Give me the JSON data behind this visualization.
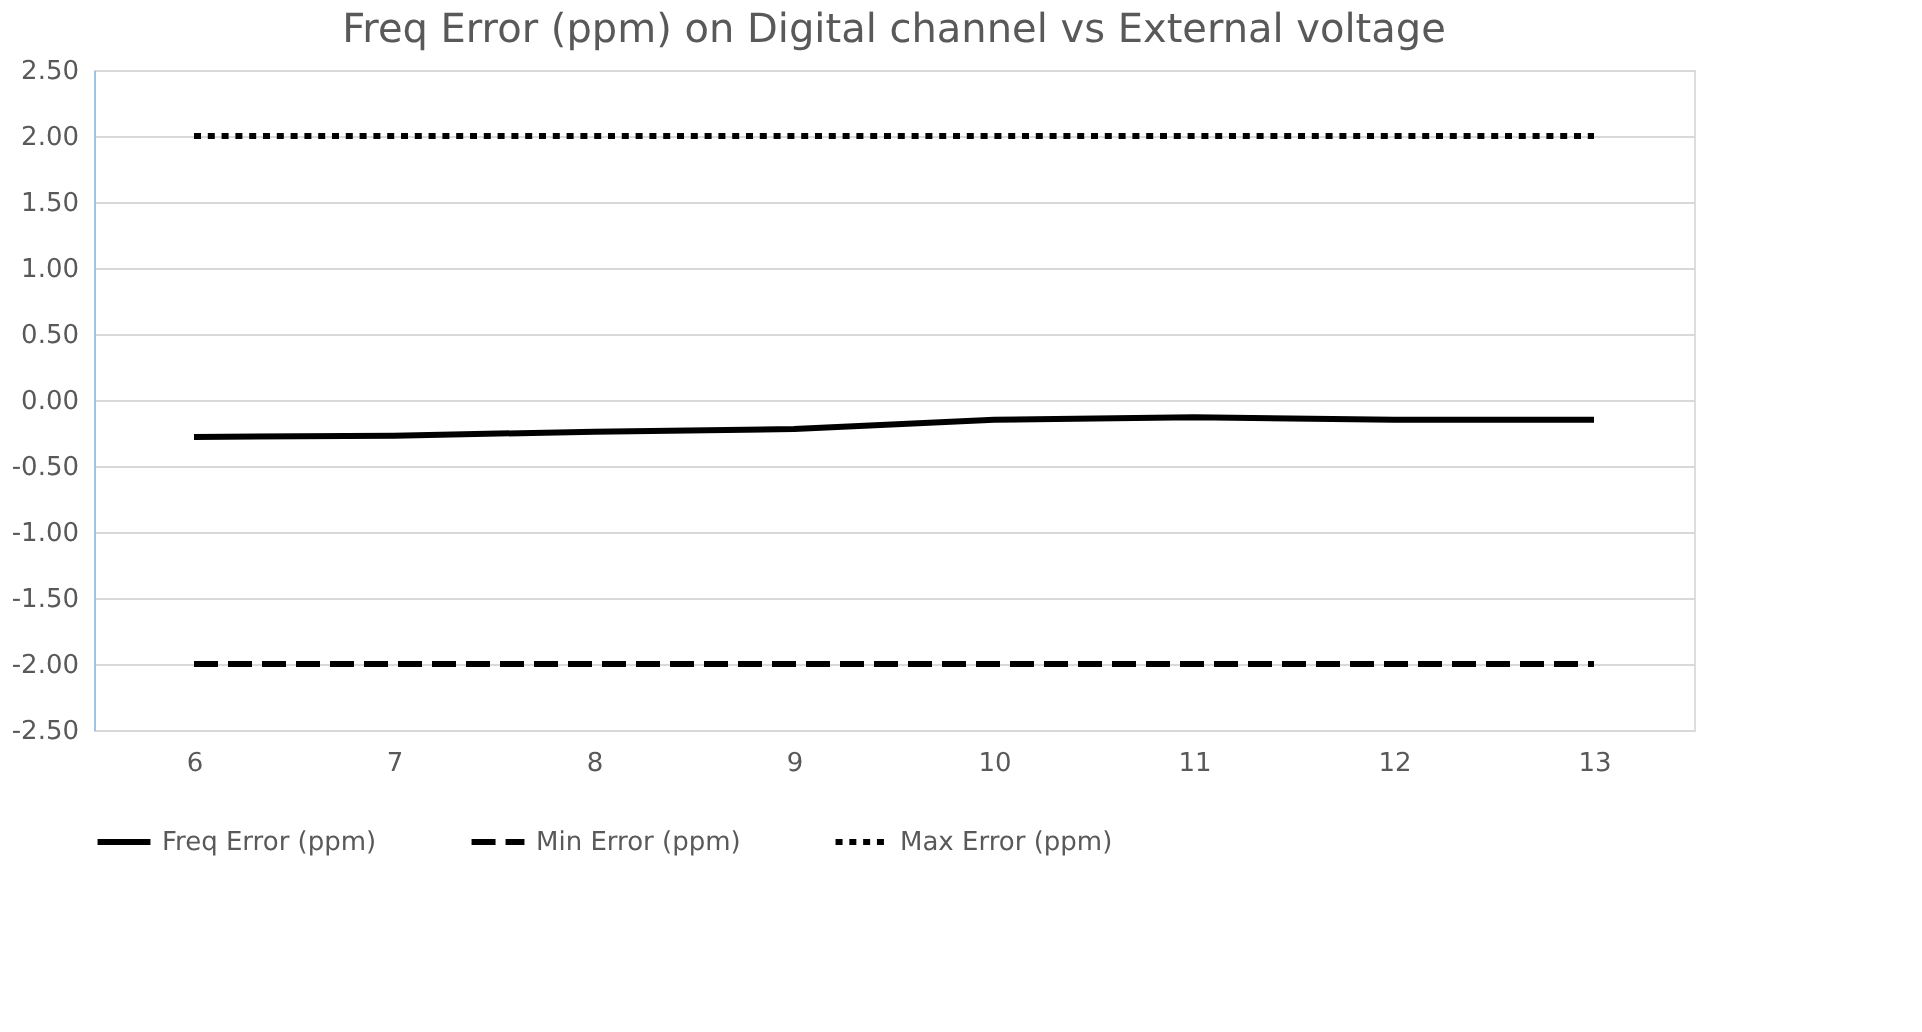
{
  "chart_data": {
    "type": "line",
    "title": "Freq Error (ppm) on Digital channel vs External voltage",
    "categories": [
      "6",
      "7",
      "8",
      "9",
      "10",
      "11",
      "12",
      "13"
    ],
    "series": [
      {
        "name": "Freq Error (ppm)",
        "color": "#000000",
        "line_style": "solid",
        "values": [
          -0.28,
          -0.27,
          -0.24,
          -0.22,
          -0.15,
          -0.13,
          -0.15,
          -0.15
        ]
      },
      {
        "name": "Min Error (ppm)",
        "color": "#000000",
        "line_style": "dashed",
        "values": [
          -2,
          -2,
          -2,
          -2,
          -2,
          -2,
          -2,
          -2
        ]
      },
      {
        "name": "Max Error (ppm)",
        "color": "#000000",
        "line_style": "dotted",
        "values": [
          2,
          2,
          2,
          2,
          2,
          2,
          2,
          2
        ]
      }
    ],
    "ylim": [
      -2.5,
      2.5
    ],
    "yticks": [
      {
        "value": -2.5,
        "label": "-2.50"
      },
      {
        "value": -2,
        "label": "-2.00"
      },
      {
        "value": -1.5,
        "label": "-1.50"
      },
      {
        "value": -1,
        "label": "-1.00"
      },
      {
        "value": -0.5,
        "label": "-0.50"
      },
      {
        "value": 0,
        "label": "0.00"
      },
      {
        "value": 0.5,
        "label": "0.50"
      },
      {
        "value": 1,
        "label": "1.00"
      },
      {
        "value": 1.5,
        "label": "1.50"
      },
      {
        "value": 2,
        "label": "2.00"
      },
      {
        "value": 2.5,
        "label": "2.50"
      }
    ],
    "grid": "y",
    "legend": "bottom",
    "marker": "none"
  }
}
